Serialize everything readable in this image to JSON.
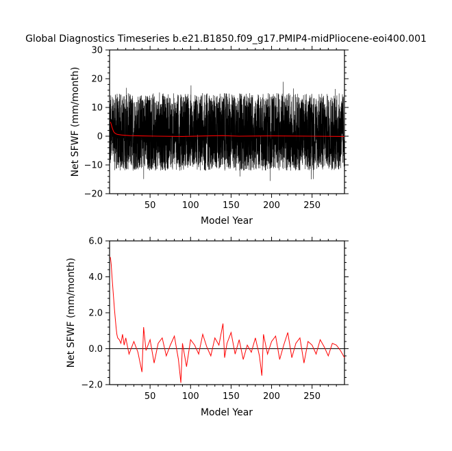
{
  "title": "Global Diagnostics Timeseries b.e21.B1850.f09_g17.PMIP4-midPliocene-eoi400.001",
  "colors": {
    "monthly": "#000000",
    "annual": "#ff0000",
    "zero_line": "#000000"
  },
  "chart_data": [
    {
      "type": "line",
      "xlabel": "Model Year",
      "ylabel": "Net SFWF (mm/month)",
      "xlim": [
        0,
        290
      ],
      "ylim": [
        -20,
        30
      ],
      "xticks": [
        50,
        100,
        150,
        200,
        250
      ],
      "yticks": [
        -20,
        -10,
        0,
        10,
        20,
        30
      ],
      "ytick_labels": [
        "-20",
        "-10",
        "0",
        "10",
        "20",
        "30"
      ],
      "grid": false,
      "series": [
        {
          "role": "monthly",
          "color": "#000000",
          "approx_envelope": {
            "min": -16,
            "max": 20,
            "typical_low": -12,
            "typical_high": 15
          },
          "resolution": "monthly"
        },
        {
          "role": "annual",
          "color": "#ff0000",
          "x": [
            1,
            2,
            3,
            4,
            5,
            6,
            8,
            10,
            15,
            25,
            40,
            60,
            90,
            120,
            140,
            160,
            200,
            250,
            290
          ],
          "y": [
            5.0,
            4.2,
            3.1,
            2.3,
            1.6,
            1.2,
            0.8,
            0.6,
            0.4,
            0.2,
            0.1,
            0.0,
            -0.1,
            0.1,
            0.2,
            0.0,
            0.1,
            0.0,
            -0.1
          ]
        }
      ]
    },
    {
      "type": "line",
      "xlabel": "Model Year",
      "ylabel": "Net SFWF (mm/month)",
      "xlim": [
        0,
        290
      ],
      "ylim": [
        -2,
        6
      ],
      "xticks": [
        50,
        100,
        150,
        200,
        250
      ],
      "yticks": [
        -2,
        0,
        2,
        4,
        6
      ],
      "ytick_labels": [
        "-2.0",
        "0.0",
        "2.0",
        "4.0",
        "6.0"
      ],
      "grid": false,
      "zero_line": true,
      "series": [
        {
          "role": "annual",
          "color": "#ff0000",
          "x": [
            1,
            2,
            3,
            4,
            5,
            6,
            7,
            8,
            9,
            10,
            12,
            14,
            16,
            18,
            20,
            24,
            30,
            35,
            40,
            42,
            45,
            50,
            55,
            60,
            65,
            70,
            75,
            80,
            85,
            88,
            90,
            95,
            100,
            105,
            110,
            115,
            120,
            125,
            130,
            135,
            140,
            142,
            145,
            150,
            155,
            160,
            165,
            170,
            175,
            180,
            185,
            188,
            190,
            195,
            200,
            205,
            210,
            215,
            220,
            225,
            230,
            235,
            240,
            245,
            250,
            255,
            260,
            265,
            270,
            275,
            280,
            285,
            290
          ],
          "y": [
            5.1,
            4.7,
            4.0,
            3.4,
            2.8,
            2.2,
            1.7,
            1.2,
            0.8,
            0.6,
            0.5,
            0.3,
            0.8,
            0.2,
            0.6,
            -0.3,
            0.4,
            -0.2,
            -1.3,
            1.2,
            -0.1,
            0.5,
            -0.8,
            0.3,
            0.6,
            -0.4,
            0.2,
            0.7,
            -0.6,
            -1.9,
            0.3,
            -1.0,
            0.5,
            0.2,
            -0.3,
            0.8,
            0.1,
            -0.4,
            0.6,
            0.2,
            1.4,
            -0.5,
            0.3,
            0.9,
            -0.3,
            0.5,
            -0.6,
            0.2,
            -0.2,
            0.6,
            -0.4,
            -1.5,
            0.8,
            -0.3,
            0.4,
            0.7,
            -0.6,
            0.2,
            0.9,
            -0.5,
            0.3,
            0.6,
            -0.8,
            0.4,
            0.2,
            -0.3,
            0.5,
            0.1,
            -0.4,
            0.3,
            0.2,
            -0.1,
            -0.5
          ]
        }
      ]
    }
  ]
}
